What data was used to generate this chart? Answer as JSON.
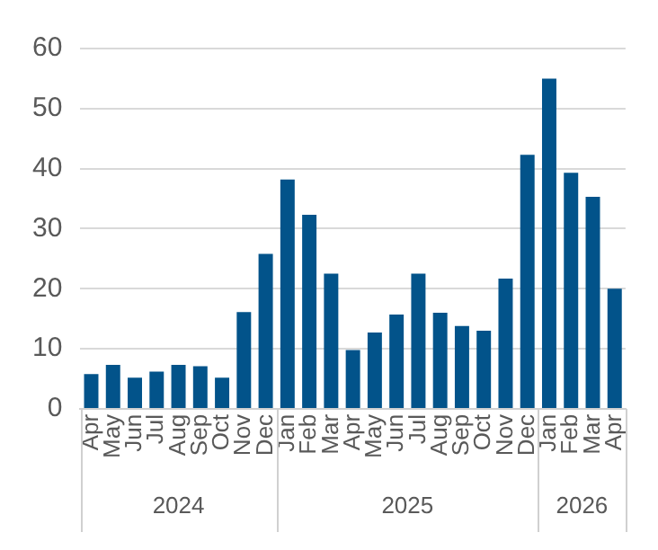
{
  "chart_data": {
    "type": "bar",
    "categories": [
      "Apr",
      "May",
      "Jun",
      "Jul",
      "Aug",
      "Sep",
      "Oct",
      "Nov",
      "Dec",
      "Jan",
      "Feb",
      "Mar",
      "Apr",
      "May",
      "Jun",
      "Jul",
      "Aug",
      "Sep",
      "Oct",
      "Nov",
      "Dec",
      "Jan",
      "Feb",
      "Mar",
      "Apr"
    ],
    "values": [
      5.8,
      7.3,
      5.2,
      6.2,
      7.3,
      7.1,
      5.2,
      16.1,
      25.8,
      38.2,
      32.3,
      22.5,
      9.8,
      12.7,
      15.7,
      22.5,
      16,
      13.8,
      13,
      21.7,
      42.3,
      55,
      39.3,
      35.3,
      20
    ],
    "color": "#02538a",
    "ylim": [
      0,
      60
    ],
    "yticks": [
      0,
      10,
      20,
      30,
      40,
      50,
      60
    ],
    "grid": "y",
    "legend": false,
    "annotations": [
      "2024",
      "2025",
      "2026"
    ]
  }
}
